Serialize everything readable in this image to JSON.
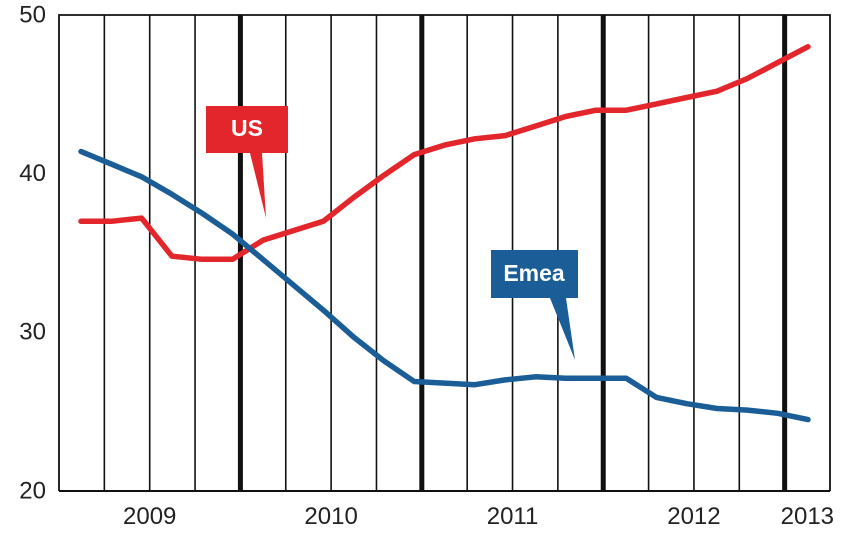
{
  "chart_data": {
    "type": "line",
    "title": "",
    "xlabel": "",
    "ylabel": "",
    "ylim": [
      20,
      50
    ],
    "yticks": [
      20,
      30,
      40,
      50
    ],
    "x_labels": [
      "2009",
      "2010",
      "2011",
      "2012",
      "2013"
    ],
    "grid": "vertical",
    "series": [
      {
        "name": "US",
        "color": "#e3262b",
        "values": [
          37.0,
          37.0,
          37.2,
          34.8,
          34.6,
          34.6,
          35.8,
          36.4,
          37.0,
          38.5,
          39.9,
          41.2,
          41.8,
          42.2,
          42.4,
          43.0,
          43.6,
          44.0,
          44.0,
          44.4,
          44.8,
          45.2,
          46.0,
          47.0,
          48.0
        ]
      },
      {
        "name": "Emea",
        "color": "#1b5e97",
        "values": [
          41.4,
          40.6,
          39.8,
          38.7,
          37.5,
          36.2,
          34.6,
          33.0,
          31.4,
          29.7,
          28.2,
          26.9,
          26.8,
          26.7,
          27.0,
          27.2,
          27.1,
          27.1,
          27.1,
          25.9,
          25.5,
          25.2,
          25.1,
          24.9,
          24.5
        ]
      }
    ]
  },
  "callouts": {
    "us": "US",
    "emea": "Emea"
  }
}
